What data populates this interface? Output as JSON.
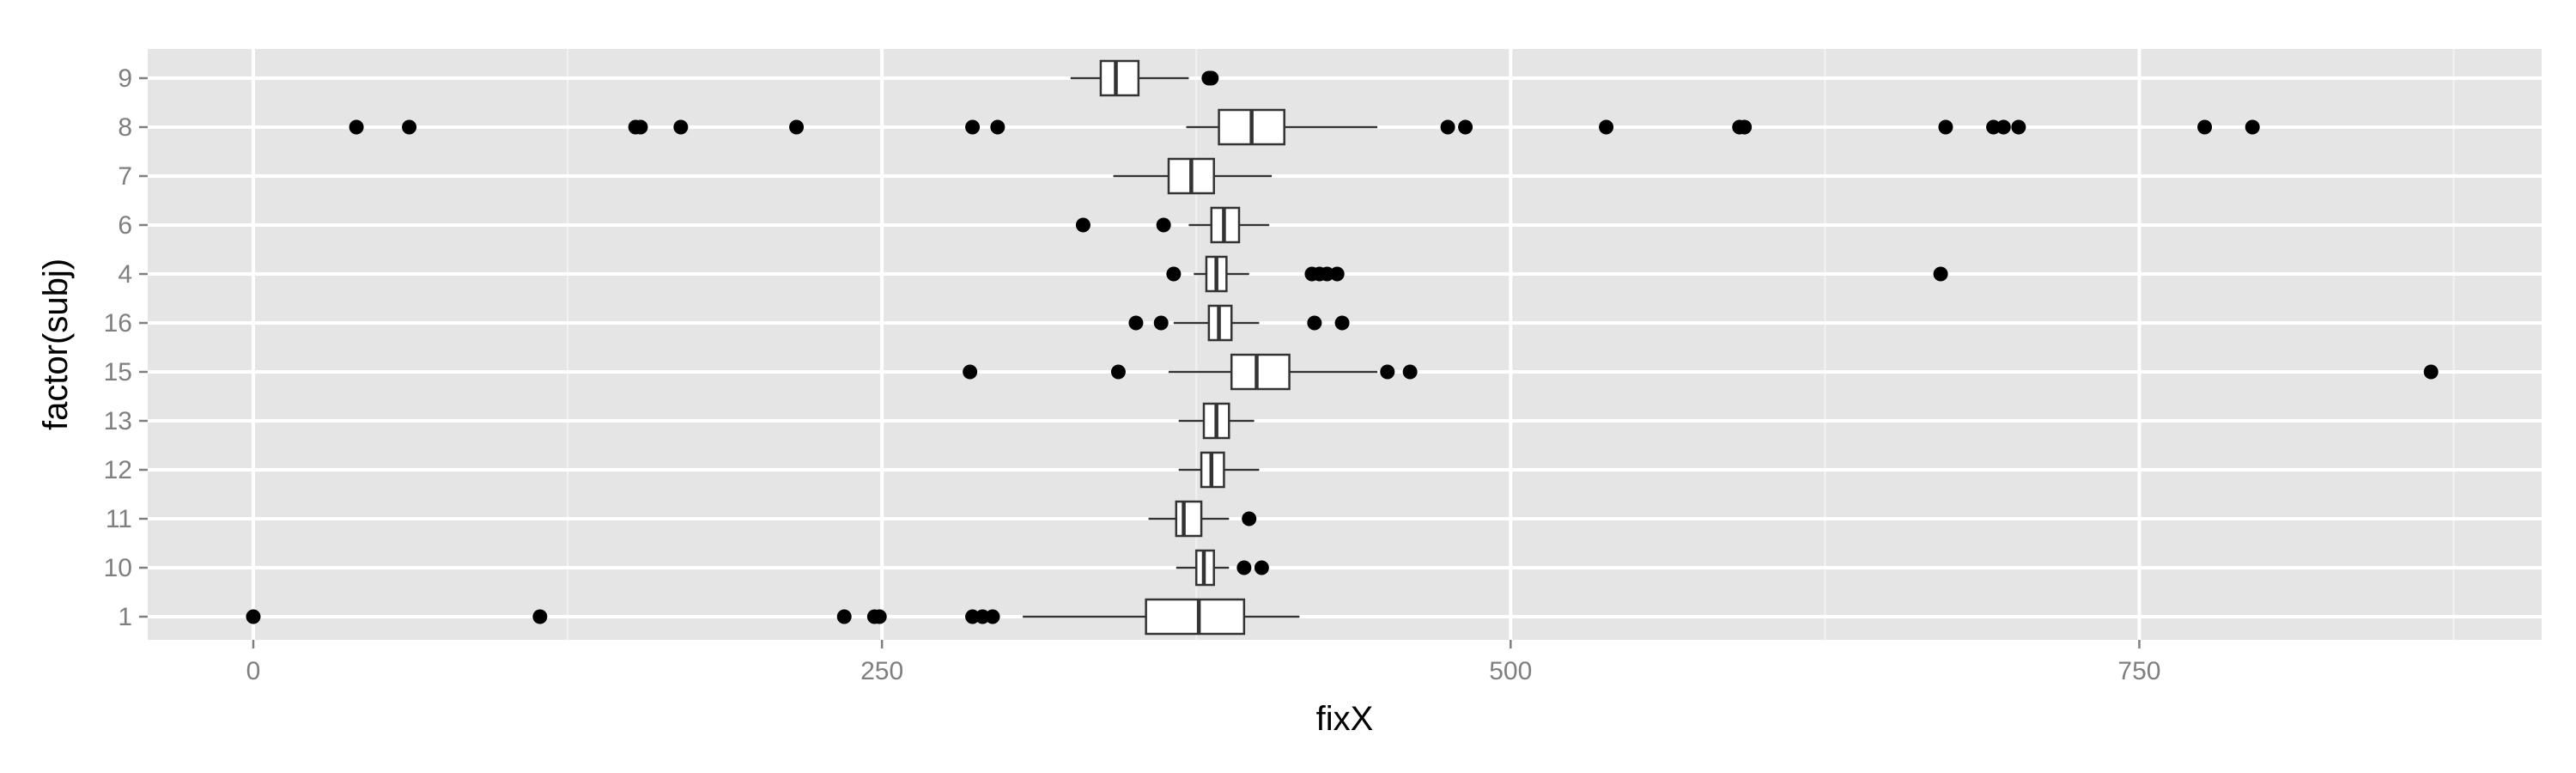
{
  "chart_data": {
    "type": "boxplot",
    "orientation": "horizontal",
    "xlabel": "fixX",
    "ylabel": "factor(subj)",
    "xlim": [
      -42,
      910
    ],
    "x_ticks": [
      0,
      250,
      500,
      750
    ],
    "x_minor_ticks": [
      125,
      375,
      625,
      875
    ],
    "grid": true,
    "colors": {
      "panel": "#e5e5e5",
      "grid_major": "#ffffff",
      "grid_minor": "#f2f2f2",
      "box_fill": "#ffffff",
      "box_stroke": "#333333",
      "outlier": "#000000",
      "tick_label": "#7f7f7f"
    },
    "categories": [
      "9",
      "8",
      "7",
      "6",
      "4",
      "16",
      "15",
      "13",
      "12",
      "11",
      "10",
      "1"
    ],
    "boxes": [
      {
        "category": "9",
        "whisker_low": 325,
        "q1": 337,
        "median": 343,
        "q3": 352,
        "whisker_high": 372,
        "outliers": [
          380,
          381
        ]
      },
      {
        "category": "8",
        "whisker_low": 371,
        "q1": 384,
        "median": 397,
        "q3": 410,
        "whisker_high": 447,
        "outliers": [
          41,
          62,
          152,
          154,
          170,
          216,
          286,
          296,
          475,
          482,
          538,
          591,
          593,
          673,
          692,
          696,
          702,
          776,
          795
        ]
      },
      {
        "category": "7",
        "whisker_low": 342,
        "q1": 364,
        "median": 373,
        "q3": 382,
        "whisker_high": 405,
        "outliers": []
      },
      {
        "category": "6",
        "whisker_low": 372,
        "q1": 381,
        "median": 386,
        "q3": 392,
        "whisker_high": 404,
        "outliers": [
          330,
          362
        ]
      },
      {
        "category": "4",
        "whisker_low": 374,
        "q1": 379,
        "median": 383,
        "q3": 387,
        "whisker_high": 396,
        "outliers": [
          366,
          421,
          424,
          427,
          431,
          671
        ]
      },
      {
        "category": "16",
        "whisker_low": 366,
        "q1": 380,
        "median": 384,
        "q3": 389,
        "whisker_high": 400,
        "outliers": [
          351,
          361,
          422,
          433
        ]
      },
      {
        "category": "15",
        "whisker_low": 364,
        "q1": 389,
        "median": 399,
        "q3": 412,
        "whisker_high": 447,
        "outliers": [
          285,
          344,
          451,
          460,
          866
        ]
      },
      {
        "category": "13",
        "whisker_low": 368,
        "q1": 378,
        "median": 383,
        "q3": 388,
        "whisker_high": 398,
        "outliers": []
      },
      {
        "category": "12",
        "whisker_low": 368,
        "q1": 377,
        "median": 381,
        "q3": 386,
        "whisker_high": 400,
        "outliers": []
      },
      {
        "category": "11",
        "whisker_low": 356,
        "q1": 367,
        "median": 370,
        "q3": 377,
        "whisker_high": 388,
        "outliers": [
          396
        ]
      },
      {
        "category": "10",
        "whisker_low": 367,
        "q1": 375,
        "median": 378,
        "q3": 382,
        "whisker_high": 388,
        "outliers": [
          394,
          401
        ]
      },
      {
        "category": "1",
        "whisker_low": 306,
        "q1": 355,
        "median": 376,
        "q3": 394,
        "whisker_high": 416,
        "outliers": [
          0,
          114,
          235,
          247,
          249,
          286,
          290,
          294
        ]
      }
    ]
  }
}
